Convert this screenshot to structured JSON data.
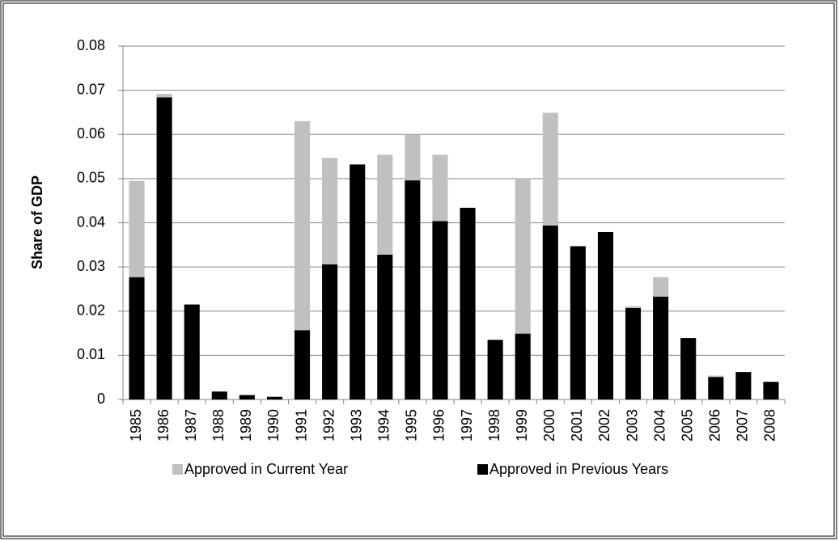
{
  "chart_data": {
    "type": "stacked_bar",
    "y_label": "Share of GDP",
    "categories": [
      "1985",
      "1986",
      "1987",
      "1988",
      "1989",
      "1990",
      "1991",
      "1992",
      "1993",
      "1994",
      "1995",
      "1996",
      "1997",
      "1998",
      "1999",
      "2000",
      "2001",
      "2002",
      "2003",
      "2004",
      "2005",
      "2006",
      "2007",
      "2008"
    ],
    "series": [
      {
        "name": "Approved in Previous Years",
        "color": "#000000",
        "values": [
          0.0277,
          0.0684,
          0.0215,
          0.0018,
          0.001,
          0.0006,
          0.0157,
          0.0306,
          0.0532,
          0.0328,
          0.0496,
          0.0404,
          0.0434,
          0.0135,
          0.0149,
          0.0394,
          0.0347,
          0.0379,
          0.0207,
          0.0233,
          0.0139,
          0.0051,
          0.0062,
          0.004
        ]
      },
      {
        "name": "Approved in Current Year",
        "color": "#c0c0c0",
        "values": [
          0.0218,
          0.0008,
          0,
          0,
          0,
          0,
          0.0473,
          0.0241,
          0,
          0.0226,
          0.0103,
          0.015,
          0,
          0,
          0.0352,
          0.0255,
          0,
          0,
          0.0004,
          0.0044,
          0,
          0.0003,
          0,
          0
        ]
      }
    ],
    "ylim": [
      0,
      0.08
    ],
    "yticks": [
      0,
      0.01,
      0.02,
      0.03,
      0.04,
      0.05,
      0.06,
      0.07,
      0.08
    ],
    "grid": true,
    "legend": "bottom"
  }
}
